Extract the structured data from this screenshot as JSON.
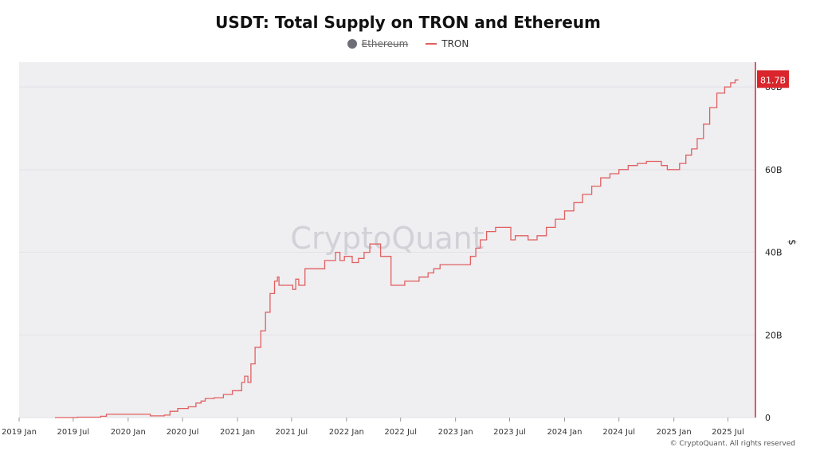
{
  "chart_data": {
    "type": "line",
    "title": "USDT: Total Supply on TRON and Ethereum",
    "legend": [
      {
        "name": "Ethereum",
        "hidden": true,
        "color": "#6e6e78"
      },
      {
        "name": "TRON",
        "hidden": false,
        "color": "#e06060"
      }
    ],
    "legend_placement": "top-center",
    "ylabel": "$",
    "y_axis_side": "right",
    "ylim": [
      0,
      86
    ],
    "y_ticks": [
      {
        "value": 0,
        "label": "0"
      },
      {
        "value": 20,
        "label": "20B"
      },
      {
        "value": 40,
        "label": "40B"
      },
      {
        "value": 60,
        "label": "60B"
      },
      {
        "value": 80,
        "label": "80B"
      }
    ],
    "x_ticks": [
      "2019 Jan",
      "2019 Jul",
      "2020 Jan",
      "2020 Jul",
      "2021 Jan",
      "2021 Jul",
      "2022 Jan",
      "2022 Jul",
      "2023 Jan",
      "2023 Jul",
      "2024 Jan",
      "2024 Jul",
      "2025 Jan",
      "2025 Jul"
    ],
    "last_value_label": "81.7B",
    "last_value_color": "#d9252b",
    "watermark": "CryptoQuant",
    "grid": true,
    "series": [
      {
        "name": "TRON",
        "color": "#e06060",
        "points": [
          [
            "2019-05-01",
            0
          ],
          [
            "2019-07-15",
            0.1
          ],
          [
            "2019-10-01",
            0.3
          ],
          [
            "2019-10-20",
            0.8
          ],
          [
            "2020-03-01",
            0.8
          ],
          [
            "2020-03-15",
            0.4
          ],
          [
            "2020-05-01",
            0.6
          ],
          [
            "2020-05-20",
            1.5
          ],
          [
            "2020-06-15",
            2.2
          ],
          [
            "2020-07-20",
            2.6
          ],
          [
            "2020-08-15",
            3.5
          ],
          [
            "2020-09-01",
            4.0
          ],
          [
            "2020-09-15",
            4.6
          ],
          [
            "2020-10-15",
            4.8
          ],
          [
            "2020-11-15",
            5.6
          ],
          [
            "2020-12-15",
            6.5
          ],
          [
            "2021-01-15",
            8.5
          ],
          [
            "2021-01-25",
            10.0
          ],
          [
            "2021-02-05",
            8.5
          ],
          [
            "2021-02-15",
            13.0
          ],
          [
            "2021-03-01",
            17.0
          ],
          [
            "2021-03-20",
            21.0
          ],
          [
            "2021-04-05",
            25.5
          ],
          [
            "2021-04-20",
            30.0
          ],
          [
            "2021-05-05",
            33.0
          ],
          [
            "2021-05-15",
            34.0
          ],
          [
            "2021-05-20",
            32.0
          ],
          [
            "2021-06-25",
            32.0
          ],
          [
            "2021-07-05",
            31.0
          ],
          [
            "2021-07-15",
            33.5
          ],
          [
            "2021-07-25",
            32.0
          ],
          [
            "2021-08-15",
            36.0
          ],
          [
            "2021-10-01",
            36.0
          ],
          [
            "2021-10-20",
            38.0
          ],
          [
            "2021-11-15",
            38.0
          ],
          [
            "2021-11-25",
            40.0
          ],
          [
            "2021-12-10",
            38.0
          ],
          [
            "2021-12-25",
            39.0
          ],
          [
            "2022-01-20",
            37.5
          ],
          [
            "2022-02-10",
            38.5
          ],
          [
            "2022-03-01",
            40.0
          ],
          [
            "2022-03-20",
            42.0
          ],
          [
            "2022-04-15",
            42.0
          ],
          [
            "2022-04-25",
            39.0
          ],
          [
            "2022-05-20",
            39.0
          ],
          [
            "2022-05-30",
            32.0
          ],
          [
            "2022-07-01",
            32.0
          ],
          [
            "2022-07-15",
            33.0
          ],
          [
            "2022-09-01",
            34.0
          ],
          [
            "2022-10-01",
            35.0
          ],
          [
            "2022-10-20",
            36.0
          ],
          [
            "2022-11-10",
            37.0
          ],
          [
            "2023-02-01",
            37.0
          ],
          [
            "2023-02-20",
            39.0
          ],
          [
            "2023-03-10",
            41.0
          ],
          [
            "2023-03-25",
            43.0
          ],
          [
            "2023-04-15",
            45.0
          ],
          [
            "2023-05-15",
            46.0
          ],
          [
            "2023-06-25",
            46.0
          ],
          [
            "2023-07-05",
            43.0
          ],
          [
            "2023-07-20",
            44.0
          ],
          [
            "2023-08-15",
            44.0
          ],
          [
            "2023-09-01",
            43.0
          ],
          [
            "2023-10-01",
            44.0
          ],
          [
            "2023-11-01",
            46.0
          ],
          [
            "2023-12-01",
            48.0
          ],
          [
            "2024-01-01",
            50.0
          ],
          [
            "2024-02-01",
            52.0
          ],
          [
            "2024-03-01",
            54.0
          ],
          [
            "2024-04-01",
            56.0
          ],
          [
            "2024-05-01",
            58.0
          ],
          [
            "2024-06-01",
            59.0
          ],
          [
            "2024-07-01",
            60.0
          ],
          [
            "2024-08-01",
            61.0
          ],
          [
            "2024-09-01",
            61.5
          ],
          [
            "2024-10-01",
            62.0
          ],
          [
            "2024-11-10",
            62.0
          ],
          [
            "2024-11-20",
            61.0
          ],
          [
            "2024-12-10",
            60.0
          ],
          [
            "2025-01-01",
            60.0
          ],
          [
            "2025-01-20",
            61.5
          ],
          [
            "2025-02-10",
            63.5
          ],
          [
            "2025-03-01",
            65.0
          ],
          [
            "2025-03-20",
            67.5
          ],
          [
            "2025-04-10",
            71.0
          ],
          [
            "2025-05-01",
            75.0
          ],
          [
            "2025-05-25",
            78.5
          ],
          [
            "2025-06-20",
            80.0
          ],
          [
            "2025-07-10",
            81.0
          ],
          [
            "2025-07-25",
            81.7
          ],
          [
            "2025-08-05",
            81.7
          ]
        ]
      }
    ]
  },
  "footer": {
    "copyright": "© CryptoQuant. All rights reserved"
  }
}
